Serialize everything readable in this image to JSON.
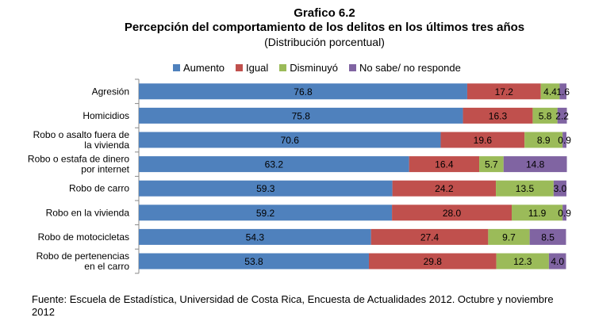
{
  "chart_data": {
    "type": "bar",
    "orientation": "horizontal",
    "stacked": true,
    "title": "Grafico 6.2",
    "subtitle": "Percepción del comportamiento de los delitos en los últimos tres años",
    "subtitle2": "(Distribución porcentual)",
    "xlim": [
      0,
      100
    ],
    "grid": false,
    "legend_position": "top",
    "categories": [
      "Agresión",
      "Homicidios",
      "Robo o asalto fuera de la vivienda",
      "Robo o estafa de dinero por internet",
      "Robo de carro",
      "Robo en la vivienda",
      "Robo de motocicletas",
      "Robo de pertenencias en el carro"
    ],
    "category_lines": [
      [
        "Agresión"
      ],
      [
        "Homicidios"
      ],
      [
        "Robo o asalto fuera de",
        "la vivienda"
      ],
      [
        "Robo o estafa de dinero",
        "por internet"
      ],
      [
        "Robo de carro"
      ],
      [
        "Robo en la vivienda"
      ],
      [
        "Robo de motocicletas"
      ],
      [
        "Robo de pertenencias",
        "en el carro"
      ]
    ],
    "series": [
      {
        "name": "Aumento",
        "color": "#4F81BD",
        "values": [
          76.8,
          75.8,
          70.6,
          63.2,
          59.3,
          59.2,
          54.3,
          53.8
        ],
        "labels": [
          "76.8",
          "75.8",
          "70.6",
          "63.2",
          "59.3",
          "59.2",
          "54.3",
          "53.8"
        ]
      },
      {
        "name": "Igual",
        "color": "#C0504D",
        "values": [
          17.2,
          16.3,
          19.6,
          16.4,
          24.2,
          28.0,
          27.4,
          29.8
        ],
        "labels": [
          "17.2",
          "16.3",
          "19.6",
          "16.4",
          "24.2",
          "28.0",
          "27.4",
          "29.8"
        ]
      },
      {
        "name": "Disminuyó",
        "color": "#9BBB59",
        "values": [
          4.4,
          5.8,
          8.9,
          5.7,
          13.5,
          11.9,
          9.7,
          12.3
        ],
        "labels": [
          "4.4",
          "5.8",
          "8.9",
          "5.7",
          "13.5",
          "11.9",
          "9.7",
          "12.3"
        ]
      },
      {
        "name": "No sabe/ no responde",
        "color": "#8064A2",
        "values": [
          1.6,
          2.2,
          0.9,
          14.8,
          3.0,
          0.9,
          8.5,
          4.0
        ],
        "labels": [
          "1.6",
          "2.2",
          "0.9",
          "14.8",
          "3.0",
          "0.9",
          "8.5",
          "4.0"
        ]
      }
    ]
  },
  "source": "Fuente: Escuela de Estadística, Universidad de Costa Rica, Encuesta de Actualidades 2012. Octubre y noviembre 2012"
}
